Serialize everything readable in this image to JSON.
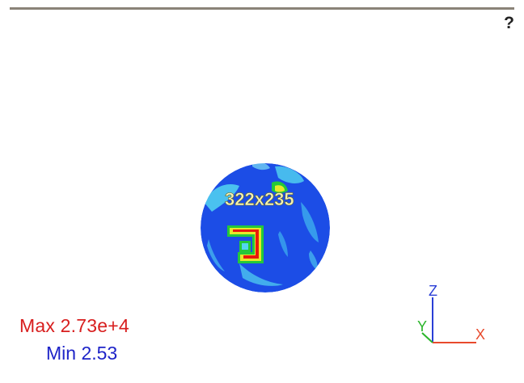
{
  "toolbar": {
    "help_label": "?"
  },
  "viewport": {
    "image_size_label": "322x235",
    "legend": {
      "max_text": "Max 2.73e+4",
      "min_text": "Min 2.53"
    },
    "triad": {
      "x_label": "X",
      "y_label": "Y",
      "z_label": "Z"
    },
    "colors": {
      "sphere_blue": "#1c4de6",
      "hot_red": "#e81a0c",
      "warm_yellow": "#e7e82a",
      "mid_green": "#24c83a",
      "cyan": "#52d6f0",
      "x_axis": "#e84a2c",
      "y_axis": "#2ab52a",
      "z_axis": "#2a3fd6"
    }
  }
}
